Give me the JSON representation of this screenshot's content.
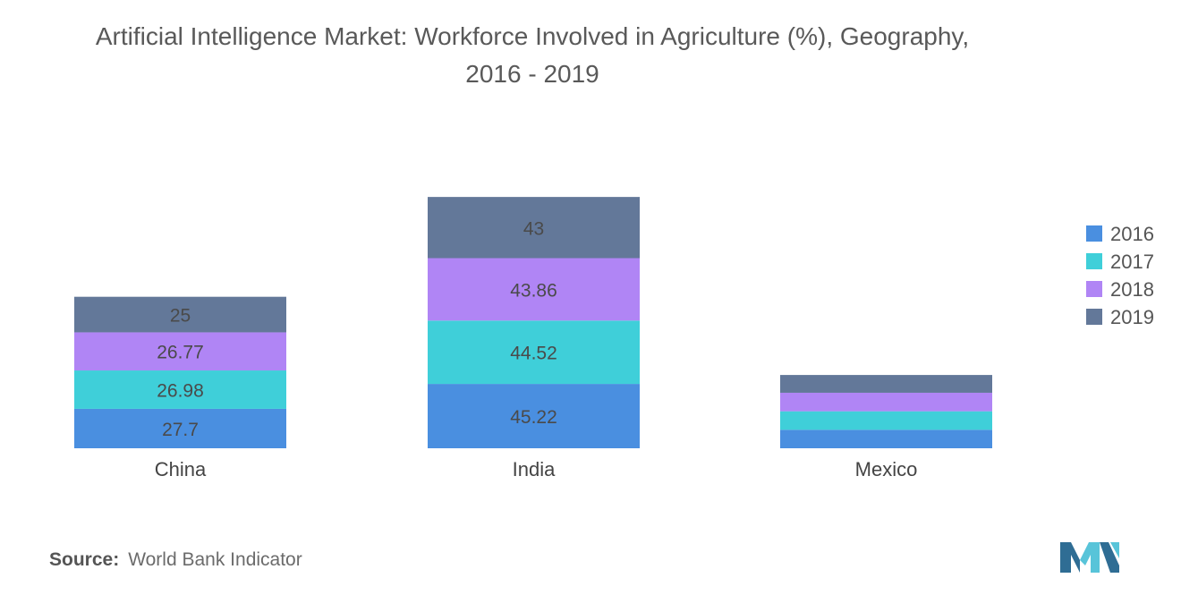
{
  "title_line1": "Artificial Intelligence Market: Workforce Involved in Agriculture (%), Geography,",
  "title_line2": "2016 - 2019",
  "source_label": "Source:",
  "source_text": "World Bank Indicator",
  "logo_icon": "mordor-intelligence-logo-icon",
  "colors": {
    "s2016": "#4a8fe0",
    "s2017": "#3fcfd9",
    "s2018": "#b085f5",
    "s2019": "#637899",
    "text": "#4a4a4a",
    "axis_text": "#444444",
    "logo_dark": "#2f6d94",
    "logo_light": "#58c4d9"
  },
  "chart_data": {
    "type": "bar",
    "stacked": true,
    "categories": [
      "China",
      "India",
      "Mexico"
    ],
    "series": [
      {
        "name": "2016",
        "values": [
          27.7,
          45.22,
          13.0
        ]
      },
      {
        "name": "2017",
        "values": [
          26.98,
          44.52,
          13.0
        ]
      },
      {
        "name": "2018",
        "values": [
          26.77,
          43.86,
          13.0
        ]
      },
      {
        "name": "2019",
        "values": [
          25,
          43,
          12.5
        ]
      }
    ],
    "data_labels": [
      [
        "27.7",
        "45.22",
        ""
      ],
      [
        "26.98",
        "44.52",
        ""
      ],
      [
        "26.77",
        "43.86",
        ""
      ],
      [
        "25",
        "43",
        ""
      ]
    ],
    "legend_position": "right",
    "grid": false,
    "y_axis_visible": false
  }
}
